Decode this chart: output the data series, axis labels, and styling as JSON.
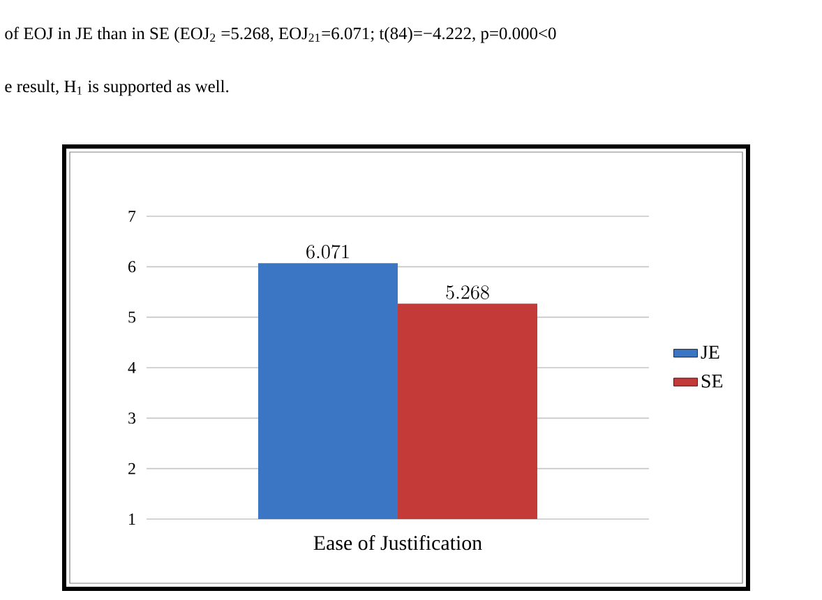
{
  "chart_data": {
    "type": "bar",
    "categories": [
      "Ease of Justification"
    ],
    "series": [
      {
        "name": "JE",
        "color": "#3a76c4",
        "values": [
          6.071
        ]
      },
      {
        "name": "SE",
        "color": "#c33a38",
        "values": [
          5.268
        ]
      }
    ],
    "ylim": [
      1,
      7
    ],
    "yticks": [
      1,
      2,
      3,
      4,
      5,
      6,
      7
    ],
    "grid": "y",
    "legend": "right",
    "data_labels": true,
    "annotations": [
      "of EOJ in JE than in SE (EOJ$_{2}$ =5.268, EOJ$_{21}$=6.071; t(84)=−4.222, p=0.000<0",
      "e result, H$_{1}$ is supported as well."
    ]
  }
}
